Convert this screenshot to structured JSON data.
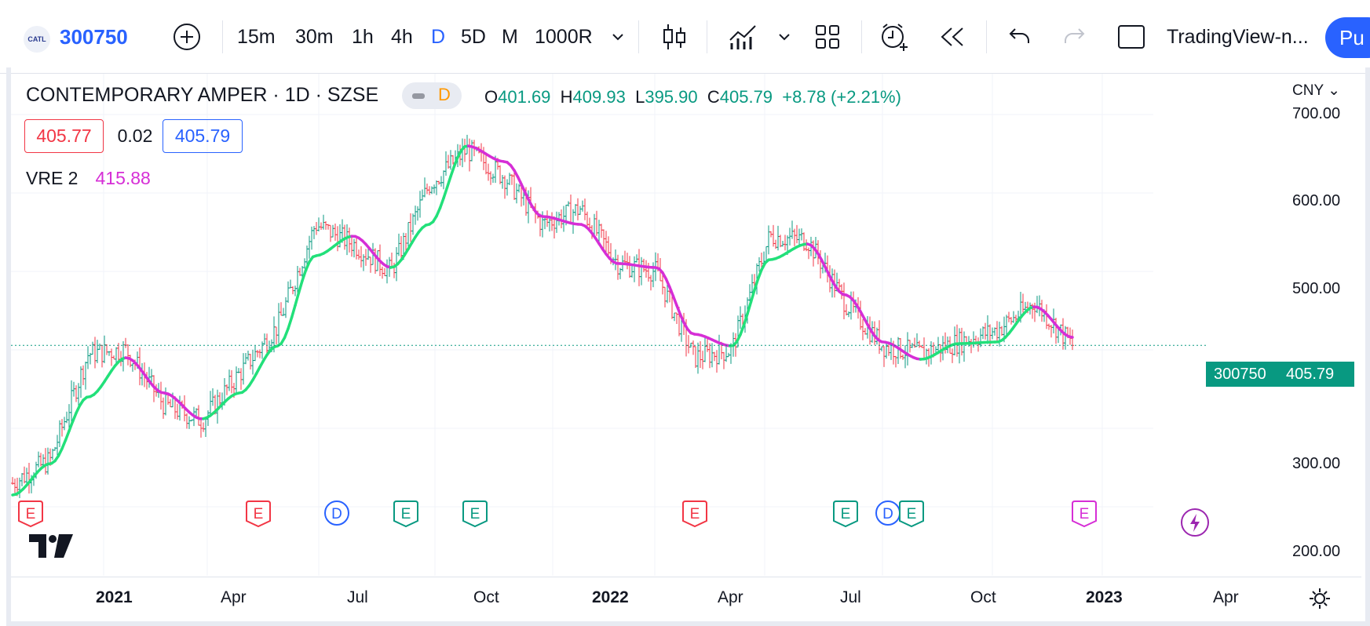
{
  "toolbar": {
    "symbol_logo": "CATL",
    "symbol": "300750",
    "timeframes": [
      "15m",
      "30m",
      "1h",
      "4h",
      "D",
      "5D",
      "M",
      "1000R"
    ],
    "active_timeframe": "D",
    "layout_name": "TradingView-n...",
    "publish_label": "Pu",
    "icons": [
      "add-symbol-icon",
      "chevron-down-icon",
      "candles-icon",
      "indicators-icon",
      "chevron-down-icon",
      "layout-grid-icon",
      "alert-clock-icon",
      "replay-icon",
      "undo-icon",
      "redo-icon",
      "fullscreen-square-icon"
    ]
  },
  "legend": {
    "title": "CONTEMPORARY AMPER · 1D · SZSE",
    "status_letter": "D",
    "open_label": "O",
    "open": "401.69",
    "high_label": "H",
    "high": "409.93",
    "low_label": "L",
    "low": "395.90",
    "close_label": "C",
    "close": "405.79",
    "change": "+8.78 (+2.21%)",
    "bid": "405.77",
    "spread": "0.02",
    "ask": "405.79",
    "indicator_name": "VRE 2",
    "indicator_value": "415.88"
  },
  "axis": {
    "currency": "CNY",
    "y_ticks": [
      "700.00",
      "600.00",
      "500.00",
      "400.00",
      "300.00",
      "200.00"
    ],
    "x_ticks": [
      {
        "label": "2021",
        "bold": true
      },
      {
        "label": "Apr",
        "bold": false
      },
      {
        "label": "Jul",
        "bold": false
      },
      {
        "label": "Oct",
        "bold": false
      },
      {
        "label": "2022",
        "bold": true
      },
      {
        "label": "Apr",
        "bold": false
      },
      {
        "label": "Jul",
        "bold": false
      },
      {
        "label": "Oct",
        "bold": false
      },
      {
        "label": "2023",
        "bold": true
      },
      {
        "label": "Apr",
        "bold": false
      }
    ],
    "settings_icon": "gear-icon"
  },
  "price_tag": {
    "symbol": "300750",
    "price": "405.79"
  },
  "events": [
    {
      "type": "E",
      "color": "#f23645"
    },
    {
      "type": "E",
      "color": "#f23645"
    },
    {
      "type": "D",
      "color": "#2962ff"
    },
    {
      "type": "E",
      "color": "#089981"
    },
    {
      "type": "E",
      "color": "#089981"
    },
    {
      "type": "E",
      "color": "#f23645"
    },
    {
      "type": "E",
      "color": "#089981"
    },
    {
      "type": "D",
      "color": "#2962ff"
    },
    {
      "type": "E",
      "color": "#089981"
    },
    {
      "type": "E",
      "color": "#d62ed6"
    }
  ],
  "chart_data": {
    "type": "line",
    "title": "CONTEMPORARY AMPER · 1D · SZSE",
    "ylabel": "CNY",
    "ylim": [
      185,
      715
    ],
    "colors": {
      "up": "#089981",
      "down": "#f23645",
      "vre_up": "#22e07a",
      "vre_down": "#d62ed6"
    },
    "x": [
      "2020-11",
      "2020-12",
      "2021-01",
      "2021-02",
      "2021-03",
      "2021-04",
      "2021-05",
      "2021-06",
      "2021-07",
      "2021-08",
      "2021-09",
      "2021-10",
      "2021-11",
      "2021-12",
      "2022-01",
      "2022-02",
      "2022-03",
      "2022-04",
      "2022-05",
      "2022-06",
      "2022-07",
      "2022-08",
      "2022-09",
      "2022-10",
      "2022-11",
      "2022-12",
      "2023-01",
      "2023-02",
      "2023-03"
    ],
    "series": [
      {
        "name": "300750",
        "values": [
          230,
          260,
          395,
          400,
          330,
          310,
          370,
          430,
          560,
          535,
          500,
          610,
          655,
          620,
          560,
          580,
          510,
          500,
          390,
          400,
          545,
          540,
          460,
          405,
          395,
          410,
          425,
          460,
          406
        ]
      },
      {
        "name": "VRE 2",
        "values": [
          215,
          255,
          340,
          390,
          345,
          312,
          345,
          405,
          520,
          545,
          505,
          560,
          660,
          640,
          570,
          560,
          510,
          505,
          420,
          405,
          515,
          535,
          470,
          410,
          388,
          408,
          410,
          455,
          416
        ]
      }
    ]
  }
}
